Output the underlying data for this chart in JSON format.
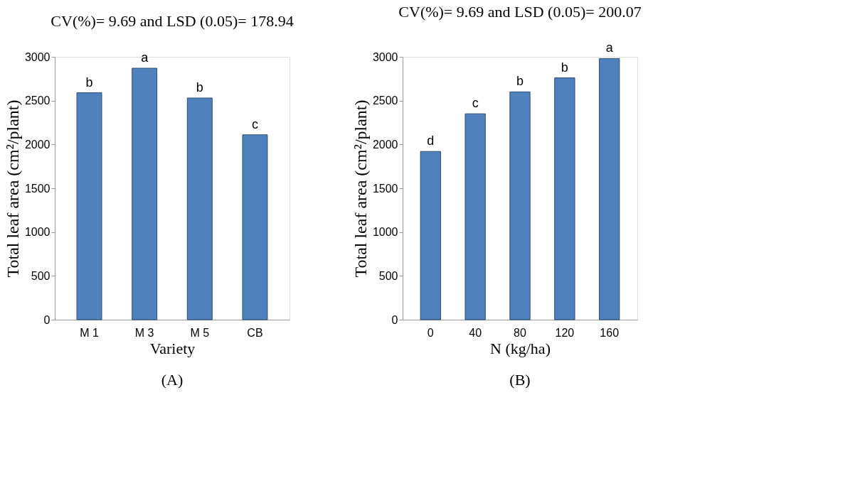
{
  "chart_data": [
    {
      "type": "bar",
      "title": "CV(%)= 9.69 and LSD (0.05)= 178.94",
      "xlabel": "Variety",
      "ylabel": "Total leaf area (cm²/plant)",
      "categories": [
        "M 1",
        "M 3",
        "M 5",
        "CB"
      ],
      "values": [
        2590,
        2870,
        2530,
        2110
      ],
      "color": "#4f81bd",
      "ylim": [
        0,
        3000
      ],
      "yticks": [
        0,
        500,
        1000,
        1500,
        2000,
        2500,
        3000
      ],
      "grid": false,
      "annotations": [
        {
          "text": "b",
          "x": "M 1",
          "y": 2590
        },
        {
          "text": "a",
          "x": "M 3",
          "y": 2870
        },
        {
          "text": "b",
          "x": "M 5",
          "y": 2530
        },
        {
          "text": "c",
          "x": "CB",
          "y": 2110
        },
        "(A)"
      ]
    },
    {
      "type": "bar",
      "title": "CV(%)= 9.69 and LSD (0.05)= 200.07",
      "xlabel": "N (kg/ha)",
      "ylabel": "Total leaf area (cm²/plant)",
      "categories": [
        "0",
        "40",
        "80",
        "120",
        "160"
      ],
      "values": [
        1920,
        2350,
        2600,
        2760,
        2980
      ],
      "color": "#4f81bd",
      "ylim": [
        0,
        3000
      ],
      "yticks": [
        0,
        500,
        1000,
        1500,
        2000,
        2500,
        3000
      ],
      "grid": false,
      "annotations": [
        {
          "text": "d",
          "x": "0",
          "y": 1920
        },
        {
          "text": "c",
          "x": "40",
          "y": 2350
        },
        {
          "text": "b",
          "x": "80",
          "y": 2600
        },
        {
          "text": "b",
          "x": "120",
          "y": 2760
        },
        {
          "text": "a",
          "x": "160",
          "y": 2980
        },
        "(B)"
      ]
    }
  ]
}
